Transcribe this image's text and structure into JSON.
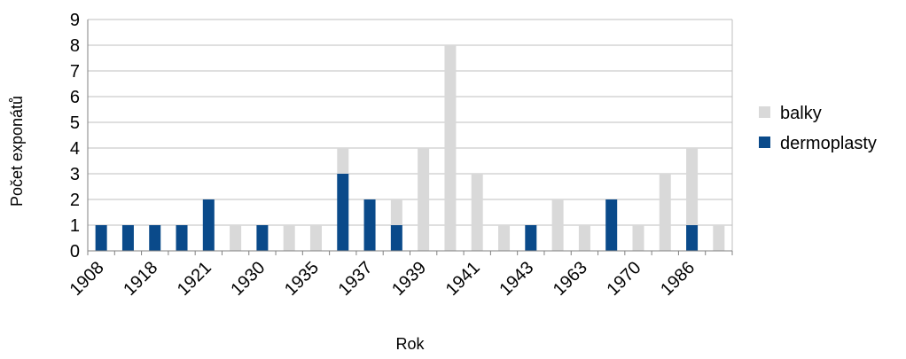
{
  "chart_data": {
    "type": "bar",
    "stacked": true,
    "xlabel": "Rok",
    "ylabel": "Počet exponátů",
    "ylim": [
      0,
      9
    ],
    "yticks": [
      0,
      1,
      2,
      3,
      4,
      5,
      6,
      7,
      8,
      9
    ],
    "grid": true,
    "legend_position": "right",
    "categories": [
      "1908",
      "",
      "1918",
      "",
      "1921",
      "",
      "1930",
      "",
      "1935",
      "",
      "1937",
      "",
      "1939",
      "",
      "1941",
      "",
      "1943",
      "",
      "1963",
      "",
      "1970",
      "",
      "1986",
      ""
    ],
    "series": [
      {
        "name": "dermoplasty",
        "color": "#0a4a8a",
        "values": [
          1,
          1,
          1,
          1,
          2,
          0,
          1,
          0,
          0,
          3,
          2,
          1,
          0,
          0,
          0,
          0,
          1,
          0,
          0,
          2,
          0,
          0,
          1,
          0
        ]
      },
      {
        "name": "balky",
        "color": "#d9d9d9",
        "values": [
          0,
          0,
          0,
          0,
          0,
          1,
          0,
          1,
          1,
          1,
          0,
          1,
          4,
          8,
          3,
          1,
          0,
          2,
          1,
          0,
          1,
          3,
          3,
          1
        ]
      }
    ],
    "legend_order": [
      "balky",
      "dermoplasty"
    ]
  }
}
